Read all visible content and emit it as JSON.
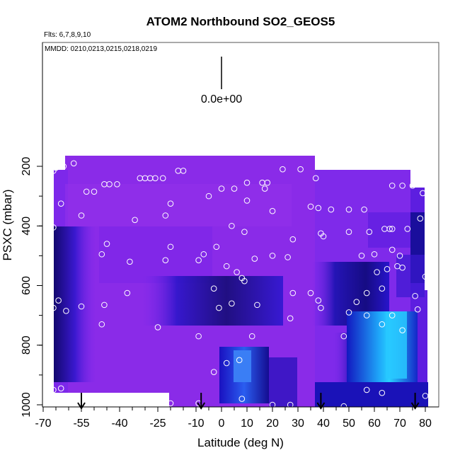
{
  "chart_data": {
    "type": "heatmap",
    "title": "ATOM2 Northbound SO2_GEOS5",
    "notes": [
      "Flts: 6,7,8,9,10",
      "MMDD: 0210,0213,0215,0218,0219"
    ],
    "xlabel": "Latitude (deg N)",
    "ylabel": "PSXC (mbar)",
    "xlim": [
      -70,
      82
    ],
    "ylim": [
      1000,
      0
    ],
    "x_ticks": [
      -70,
      -55,
      -40,
      -25,
      -10,
      0,
      10,
      20,
      30,
      40,
      50,
      60,
      70,
      80
    ],
    "y_ticks": [
      200,
      400,
      600,
      800,
      1000
    ],
    "legend": {
      "label": "0.0e+00",
      "value": 0.0
    },
    "colors": {
      "background_field": "#8a2be8",
      "low": "#5a1fe6",
      "mid": "#1a10c8",
      "dark": "#0a0a60",
      "high": "#1ec8ff",
      "marker": "#ffffff"
    },
    "arrow_latitudes": [
      -55,
      -8,
      39,
      76
    ],
    "observations": [
      {
        "x": -68,
        "y": 230
      },
      {
        "x": -66,
        "y": 215
      },
      {
        "x": -65,
        "y": 205
      },
      {
        "x": -62,
        "y": 200
      },
      {
        "x": -58,
        "y": 190
      },
      {
        "x": -63,
        "y": 325
      },
      {
        "x": -66,
        "y": 405
      },
      {
        "x": -64,
        "y": 650
      },
      {
        "x": -66,
        "y": 675
      },
      {
        "x": -61,
        "y": 685
      },
      {
        "x": -66,
        "y": 950
      },
      {
        "x": -63,
        "y": 945
      },
      {
        "x": -55,
        "y": 365
      },
      {
        "x": -53,
        "y": 285
      },
      {
        "x": -50,
        "y": 285
      },
      {
        "x": -46,
        "y": 260
      },
      {
        "x": -44,
        "y": 260
      },
      {
        "x": -41,
        "y": 260
      },
      {
        "x": -45,
        "y": 460
      },
      {
        "x": -47,
        "y": 495
      },
      {
        "x": -55,
        "y": 670
      },
      {
        "x": -46,
        "y": 665
      },
      {
        "x": -47,
        "y": 730
      },
      {
        "x": -37,
        "y": 625
      },
      {
        "x": -32,
        "y": 240
      },
      {
        "x": -30,
        "y": 240
      },
      {
        "x": -28,
        "y": 240
      },
      {
        "x": -26,
        "y": 240
      },
      {
        "x": -23,
        "y": 240
      },
      {
        "x": -17,
        "y": 215
      },
      {
        "x": -15,
        "y": 215
      },
      {
        "x": -20,
        "y": 325
      },
      {
        "x": -22,
        "y": 365
      },
      {
        "x": -20,
        "y": 470
      },
      {
        "x": -22,
        "y": 515
      },
      {
        "x": -36,
        "y": 520
      },
      {
        "x": -34,
        "y": 380
      },
      {
        "x": -25,
        "y": 740
      },
      {
        "x": -9,
        "y": 515
      },
      {
        "x": -7,
        "y": 495
      },
      {
        "x": -5,
        "y": 300
      },
      {
        "x": 0,
        "y": 275
      },
      {
        "x": 5,
        "y": 275
      },
      {
        "x": 10,
        "y": 255
      },
      {
        "x": 16,
        "y": 255
      },
      {
        "x": 18,
        "y": 255
      },
      {
        "x": 17,
        "y": 275
      },
      {
        "x": 10,
        "y": 315
      },
      {
        "x": 4,
        "y": 400
      },
      {
        "x": 9,
        "y": 420
      },
      {
        "x": 20,
        "y": 350
      },
      {
        "x": 24,
        "y": 210
      },
      {
        "x": 31,
        "y": 210
      },
      {
        "x": 37,
        "y": 240
      },
      {
        "x": 35,
        "y": 335
      },
      {
        "x": 38,
        "y": 340
      },
      {
        "x": 28,
        "y": 445
      },
      {
        "x": 2,
        "y": 535
      },
      {
        "x": 6,
        "y": 555
      },
      {
        "x": 13,
        "y": 510
      },
      {
        "x": 20,
        "y": 500
      },
      {
        "x": 26,
        "y": 505
      },
      {
        "x": -2,
        "y": 470
      },
      {
        "x": -3,
        "y": 610
      },
      {
        "x": 8,
        "y": 575
      },
      {
        "x": 9,
        "y": 585
      },
      {
        "x": 4,
        "y": 660
      },
      {
        "x": 14,
        "y": 665
      },
      {
        "x": 12,
        "y": 770
      },
      {
        "x": -1,
        "y": 675
      },
      {
        "x": -9,
        "y": 770
      },
      {
        "x": 28,
        "y": 625
      },
      {
        "x": 35,
        "y": 625
      },
      {
        "x": 38,
        "y": 650
      },
      {
        "x": 39,
        "y": 675
      },
      {
        "x": 27,
        "y": 710
      },
      {
        "x": 2,
        "y": 860
      },
      {
        "x": -3,
        "y": 890
      },
      {
        "x": 7,
        "y": 850
      },
      {
        "x": 8,
        "y": 980
      },
      {
        "x": 20,
        "y": 1000
      },
      {
        "x": 27,
        "y": 1000
      },
      {
        "x": -20,
        "y": 995
      },
      {
        "x": -9,
        "y": 995
      },
      {
        "x": 43,
        "y": 345
      },
      {
        "x": 39,
        "y": 425
      },
      {
        "x": 40,
        "y": 435
      },
      {
        "x": 50,
        "y": 345
      },
      {
        "x": 56,
        "y": 345
      },
      {
        "x": 50,
        "y": 420
      },
      {
        "x": 58,
        "y": 420
      },
      {
        "x": 55,
        "y": 500
      },
      {
        "x": 57,
        "y": 625
      },
      {
        "x": 53,
        "y": 655
      },
      {
        "x": 50,
        "y": 690
      },
      {
        "x": 48,
        "y": 770
      },
      {
        "x": 57,
        "y": 700
      },
      {
        "x": 60,
        "y": 495
      },
      {
        "x": 61,
        "y": 555
      },
      {
        "x": 64,
        "y": 410
      },
      {
        "x": 66,
        "y": 410
      },
      {
        "x": 67,
        "y": 410
      },
      {
        "x": 67,
        "y": 480
      },
      {
        "x": 69,
        "y": 535
      },
      {
        "x": 70,
        "y": 500
      },
      {
        "x": 65,
        "y": 545
      },
      {
        "x": 63,
        "y": 610
      },
      {
        "x": 67,
        "y": 265
      },
      {
        "x": 71,
        "y": 265
      },
      {
        "x": 73,
        "y": 410
      },
      {
        "x": 75,
        "y": 265
      },
      {
        "x": 78,
        "y": 375
      },
      {
        "x": 79,
        "y": 290
      },
      {
        "x": 80,
        "y": 570
      },
      {
        "x": 71,
        "y": 540
      },
      {
        "x": 76,
        "y": 635
      },
      {
        "x": 77,
        "y": 680
      },
      {
        "x": 67,
        "y": 700
      },
      {
        "x": 71,
        "y": 750
      },
      {
        "x": 63,
        "y": 730
      },
      {
        "x": 57,
        "y": 950
      },
      {
        "x": 63,
        "y": 960
      },
      {
        "x": 80,
        "y": 970
      },
      {
        "x": 48,
        "y": 1005
      }
    ]
  }
}
